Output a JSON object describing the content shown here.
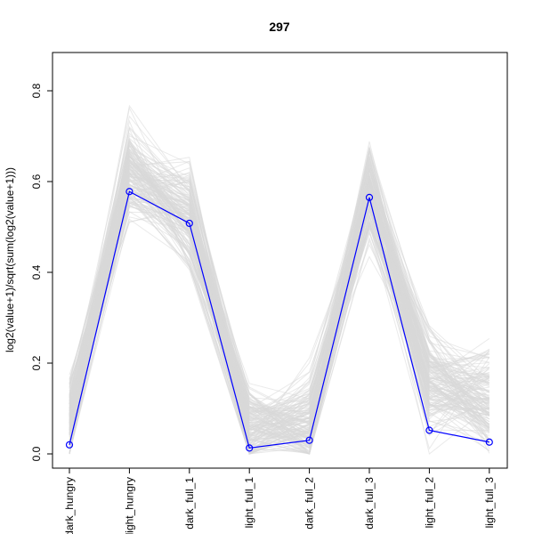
{
  "chart_data": {
    "type": "line",
    "title": "297",
    "xlabel": "",
    "ylabel": "log2(value+1)/sqrt(sum(log2(value+1)))",
    "categories": [
      "dark_hungry",
      "light_hungry",
      "dark_full_1",
      "light_full_1",
      "dark_full_2",
      "dark_full_3",
      "light_full_2",
      "light_full_3"
    ],
    "ylim": [
      0.0,
      0.88
    ],
    "yticks": [
      0.0,
      0.2,
      0.4,
      0.6,
      0.8
    ],
    "ytick_labels": [
      "0.0",
      "0.2",
      "0.4",
      "0.6",
      "0.8"
    ],
    "grid": false,
    "legend": "none",
    "highlight_series": {
      "color": "#0000ff",
      "values": [
        0.02,
        0.578,
        0.508,
        0.013,
        0.03,
        0.565,
        0.052,
        0.026
      ]
    },
    "background_series": {
      "color": "#d9d9d9",
      "note_count": 160
    }
  }
}
